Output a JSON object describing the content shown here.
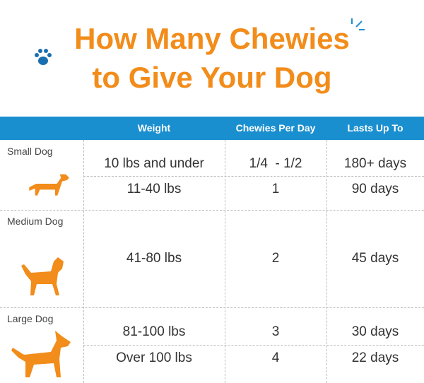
{
  "title_lines": [
    "How Many Chewies",
    "to Give Your Dog"
  ],
  "table": {
    "headers": [
      "Weight",
      "Chewies Per Day",
      "Lasts Up To"
    ],
    "groups": [
      {
        "label": "Small Dog",
        "rows": [
          [
            "10 lbs and under",
            "1/4  - 1/2",
            "180+ days"
          ],
          [
            "11-40 lbs",
            "1",
            "90 days"
          ]
        ]
      },
      {
        "label": "Medium Dog",
        "rows": [
          [
            "41-80 lbs",
            "2",
            "45 days"
          ]
        ]
      },
      {
        "label": "Large Dog",
        "rows": [
          [
            "81-100 lbs",
            "3",
            "30 days"
          ],
          [
            "Over 100 lbs",
            "4",
            "22 days"
          ]
        ]
      }
    ]
  }
}
